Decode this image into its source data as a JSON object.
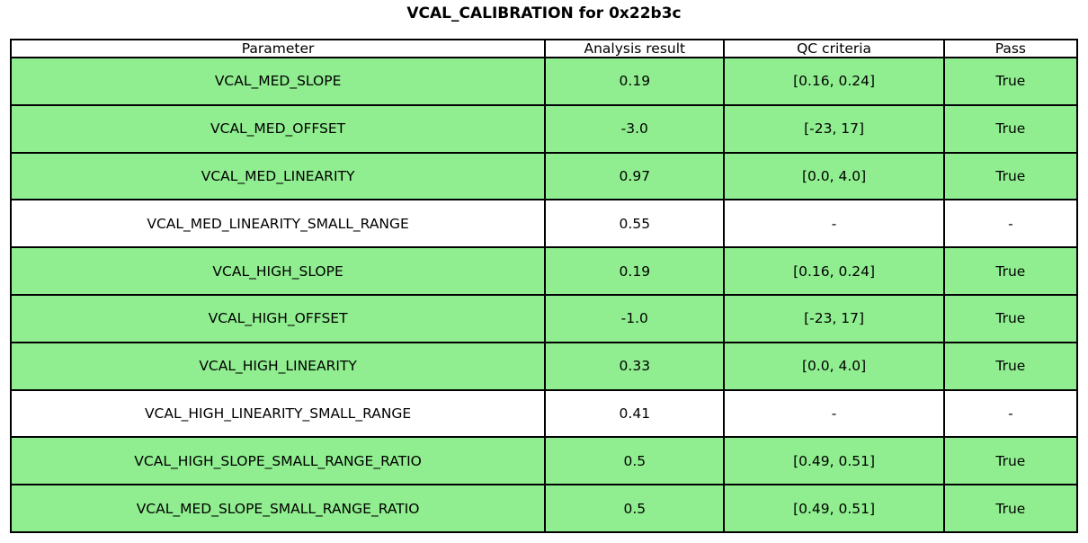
{
  "title": "VCAL_CALIBRATION for 0x22b3c",
  "colors": {
    "pass_row_background": "#90ee90",
    "neutral_row_background": "#ffffff",
    "border": "#000000",
    "text": "#000000"
  },
  "chart_data": {
    "type": "table",
    "title": "VCAL_CALIBRATION for 0x22b3c",
    "headers": [
      "Parameter",
      "Analysis result",
      "QC criteria",
      "Pass"
    ],
    "rows": [
      {
        "parameter": "VCAL_MED_SLOPE",
        "result": "0.19",
        "criteria": "[0.16, 0.24]",
        "pass": "True",
        "highlight": true
      },
      {
        "parameter": "VCAL_MED_OFFSET",
        "result": "-3.0",
        "criteria": "[-23, 17]",
        "pass": "True",
        "highlight": true
      },
      {
        "parameter": "VCAL_MED_LINEARITY",
        "result": "0.97",
        "criteria": "[0.0, 4.0]",
        "pass": "True",
        "highlight": true
      },
      {
        "parameter": "VCAL_MED_LINEARITY_SMALL_RANGE",
        "result": "0.55",
        "criteria": "-",
        "pass": "-",
        "highlight": false
      },
      {
        "parameter": "VCAL_HIGH_SLOPE",
        "result": "0.19",
        "criteria": "[0.16, 0.24]",
        "pass": "True",
        "highlight": true
      },
      {
        "parameter": "VCAL_HIGH_OFFSET",
        "result": "-1.0",
        "criteria": "[-23, 17]",
        "pass": "True",
        "highlight": true
      },
      {
        "parameter": "VCAL_HIGH_LINEARITY",
        "result": "0.33",
        "criteria": "[0.0, 4.0]",
        "pass": "True",
        "highlight": true
      },
      {
        "parameter": "VCAL_HIGH_LINEARITY_SMALL_RANGE",
        "result": "0.41",
        "criteria": "-",
        "pass": "-",
        "highlight": false
      },
      {
        "parameter": "VCAL_HIGH_SLOPE_SMALL_RANGE_RATIO",
        "result": "0.5",
        "criteria": "[0.49, 0.51]",
        "pass": "True",
        "highlight": true
      },
      {
        "parameter": "VCAL_MED_SLOPE_SMALL_RANGE_RATIO",
        "result": "0.5",
        "criteria": "[0.49, 0.51]",
        "pass": "True",
        "highlight": true
      }
    ]
  }
}
